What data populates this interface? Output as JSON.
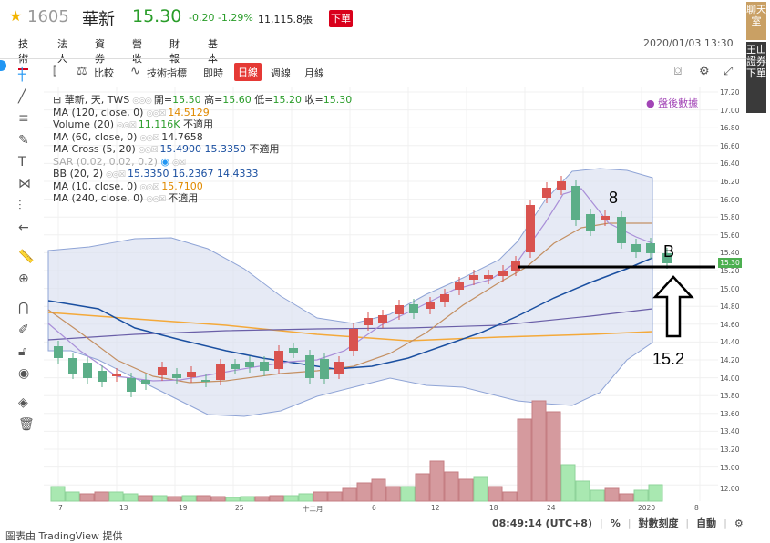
{
  "header": {
    "code": "1605",
    "name": "華新",
    "price": "15.30",
    "change": "-0.20 -1.29%",
    "volume": "11,115.8張",
    "order_label": "下單"
  },
  "tabs": [
    "技術",
    "法人",
    "資券",
    "營收",
    "財報",
    "基本"
  ],
  "timestamp": "2020/01/03 13:30",
  "side": {
    "chat": "聊天室",
    "broker": "王山證券下單"
  },
  "toolbar": {
    "compare": "比較",
    "indicators": "技術指標",
    "intraday": "即時",
    "daily": "日線",
    "weekly": "週線",
    "monthly": "月線"
  },
  "legend": {
    "row1": {
      "label": "華新, 天, TWS",
      "o_label": "開",
      "o": "15.50",
      "h_label": "高",
      "h": "15.60",
      "l_label": "低",
      "l": "15.20",
      "c_label": "收",
      "c": "15.30"
    },
    "ma120": {
      "label": "MA (120, close, 0)",
      "value": "14.5129"
    },
    "volume": {
      "label": "Volume (20)",
      "value": "11.116K",
      "na": "不適用"
    },
    "ma60": {
      "label": "MA (60, close, 0)",
      "value": "14.7658"
    },
    "macross": {
      "label": "MA Cross (5, 20)",
      "v1": "15.4900",
      "v2": "15.3350",
      "na": "不適用"
    },
    "sar": {
      "label": "SAR (0.02, 0.02, 0.2)"
    },
    "bb": {
      "label": "BB (20, 2)",
      "v1": "15.3350",
      "v2": "16.2367",
      "v3": "14.4333"
    },
    "ma10": {
      "label": "MA (10, close, 0)",
      "value": "15.7100"
    },
    "ma240": {
      "label": "MA (240, close, 0)",
      "na": "不適用"
    }
  },
  "post_market": "盤後數據",
  "yaxis": [
    "17.20",
    "17.00",
    "16.80",
    "16.60",
    "16.40",
    "16.20",
    "16.00",
    "15.80",
    "15.60",
    "15.40",
    "15.20",
    "15.00",
    "14.80",
    "14.60",
    "14.40",
    "14.20",
    "14.00",
    "13.80",
    "13.60",
    "13.40",
    "13.20",
    "13.00",
    "12.00"
  ],
  "price_tag": "15.30",
  "xaxis": [
    "7",
    "13",
    "19",
    "25",
    "十二月",
    "6",
    "12",
    "18",
    "24",
    "2020",
    "8"
  ],
  "status": {
    "time": "08:49:14 (UTC+8)",
    "percent": "%",
    "log": "對數刻度",
    "auto": "自動"
  },
  "credit": "圖表由 TradingView 提供",
  "annotations": {
    "eight": "8",
    "b": "B",
    "level": "15.2"
  },
  "colors": {
    "up": "#d9534f",
    "down": "#5cae88",
    "ma": "#f4a93a",
    "bb_fill": "#d8def0",
    "accent": "#d9001b"
  }
}
